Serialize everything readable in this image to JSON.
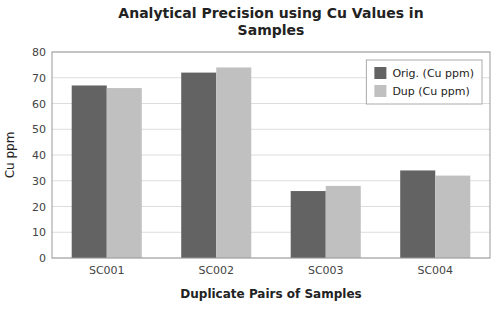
{
  "chart_data": {
    "type": "bar",
    "title": "Analytical Precision using Cu Values in\nSamples",
    "xlabel": "Duplicate Pairs of Samples",
    "ylabel": "Cu ppm",
    "categories": [
      "SC001",
      "SC002",
      "SC003",
      "SC004"
    ],
    "series": [
      {
        "name": "Orig.  (Cu ppm)",
        "color": "#636363",
        "values": [
          67,
          72,
          26,
          34
        ]
      },
      {
        "name": "Dup (Cu ppm)",
        "color": "#c0c0c0",
        "values": [
          66,
          74,
          28,
          32
        ]
      }
    ],
    "ylim": [
      0,
      80
    ],
    "yticks": [
      0,
      10,
      20,
      30,
      40,
      50,
      60,
      70,
      80
    ],
    "grid": true,
    "legend": "upper right"
  }
}
